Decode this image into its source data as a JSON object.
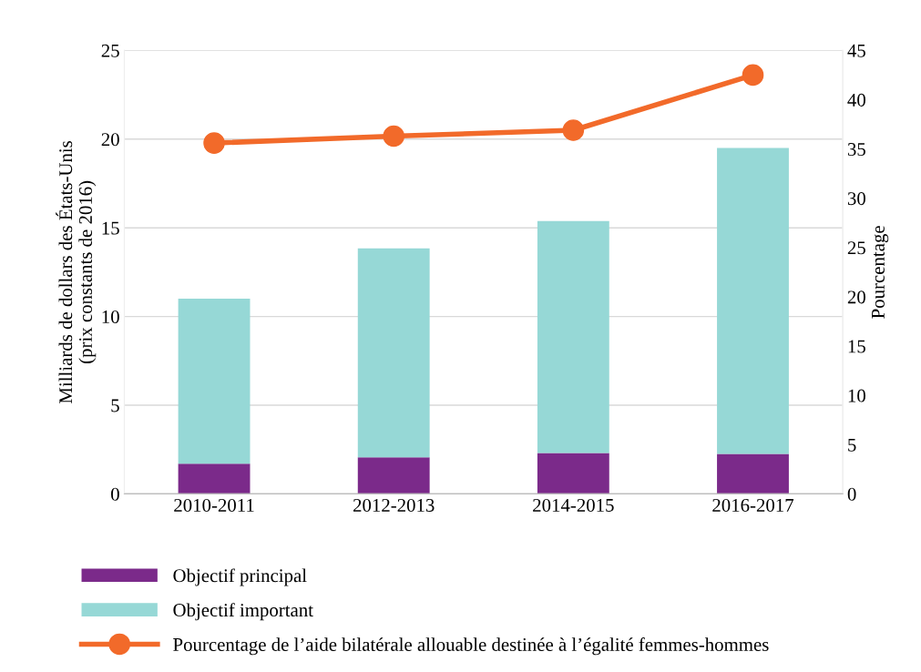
{
  "chart_data": {
    "type": "bar",
    "stacked": true,
    "categories": [
      "2010-2011",
      "2012-2013",
      "2014-2015",
      "2016-2017"
    ],
    "ylabel": "Milliards de dollars des États-Unis\n(prix constants de 2016)",
    "y2label": "Pourcentage",
    "ylim": [
      0,
      25
    ],
    "yticks": [
      0,
      5,
      10,
      15,
      20,
      25
    ],
    "y2lim": [
      0,
      45
    ],
    "y2ticks": [
      0,
      5,
      10,
      15,
      20,
      25,
      30,
      35,
      40,
      45
    ],
    "grid": "y",
    "legend": "bottom",
    "series": [
      {
        "name": "Objectif principal",
        "color": "#7b2a8a",
        "values": [
          1.7,
          2.06,
          2.31,
          2.26
        ]
      },
      {
        "name": "Objectif important",
        "color": "#96d8d6",
        "values": [
          9.3,
          11.78,
          13.07,
          17.24
        ]
      },
      {
        "name": "Pourcentage de l’aide bilatérale allouable destinée à l’égalité femmes-hommes",
        "type": "line",
        "axis": "y2",
        "color": "#f26a2a",
        "marker": "circle",
        "line_style": "solid",
        "values": [
          35.6,
          36.3,
          36.9,
          42.5
        ]
      }
    ]
  }
}
